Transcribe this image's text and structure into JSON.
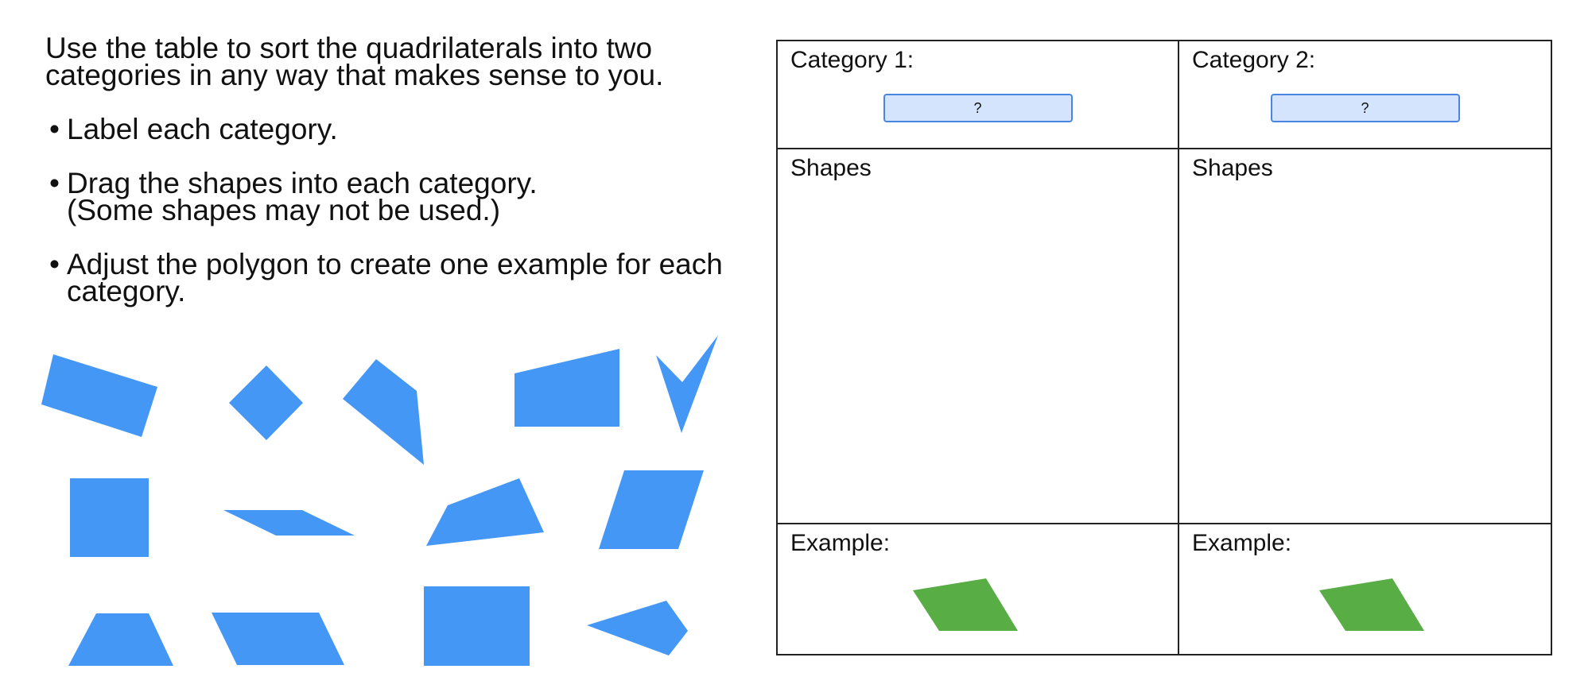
{
  "instructions": {
    "intro": "Use the table to sort the quadrilaterals into two categories in any way that makes sense to you.",
    "bullet_char": "•",
    "steps": [
      "Label each category.",
      "Drag the shapes into each category.",
      "Adjust the polygon to create one example for each category."
    ],
    "step2_note": "(Some shapes may not be used.)"
  },
  "table": {
    "category1_title": "Category 1:",
    "category2_title": "Category 2:",
    "category1_label_value": "?",
    "category2_label_value": "?",
    "shapes1_title": "Shapes",
    "shapes2_title": "Shapes",
    "example1_title": "Example:",
    "example2_title": "Example:"
  },
  "colors": {
    "shape_fill": "#4597f6",
    "example_fill": "#58ad45",
    "label_fill": "#d4e4fc",
    "label_border": "#4a86e0"
  }
}
